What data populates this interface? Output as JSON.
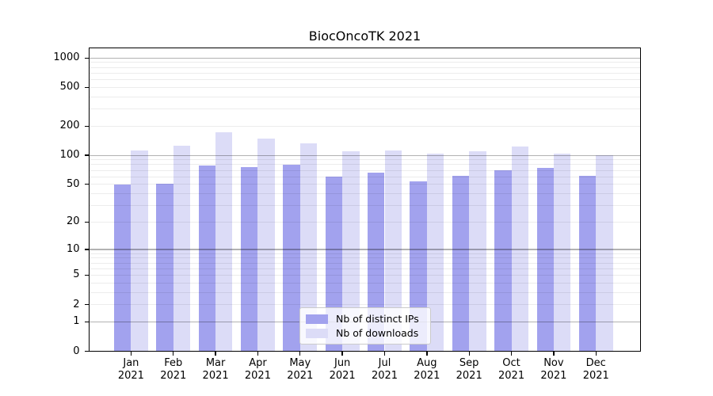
{
  "chart_data": {
    "type": "bar",
    "title": "BiocOncoTK 2021",
    "scale": "log1p",
    "categories": [
      "Jan",
      "Feb",
      "Mar",
      "Apr",
      "May",
      "Jun",
      "Jul",
      "Aug",
      "Sep",
      "Oct",
      "Nov",
      "Dec"
    ],
    "category_year": "2021",
    "series": [
      {
        "name": "Nb of distinct IPs",
        "color": "#a2a2ee",
        "values": [
          50,
          51,
          79,
          76,
          80,
          60,
          66,
          54,
          61,
          70,
          74,
          61
        ]
      },
      {
        "name": "Nb of downloads",
        "color": "#dcdcf7",
        "values": [
          113,
          126,
          172,
          148,
          133,
          110,
          112,
          104,
          111,
          124,
          104,
          101
        ]
      }
    ],
    "yticks": [
      0,
      1,
      2,
      5,
      10,
      20,
      50,
      100,
      200,
      500,
      1000
    ],
    "ylim": [
      0,
      1280
    ],
    "grid": "both",
    "legend_position": "lower-center"
  },
  "colors": {
    "major_grid": "#b0b0b0",
    "minor_grid": "#ececec",
    "axis": "#000000",
    "text": "#000000",
    "background": "#ffffff"
  }
}
